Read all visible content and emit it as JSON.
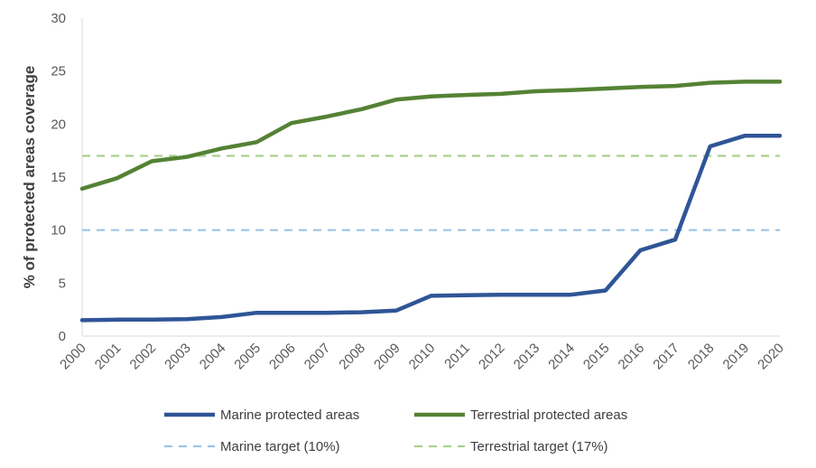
{
  "chart_data": {
    "type": "line",
    "ylabel": "% of protected areas coverage",
    "xlabel": "",
    "ylim": [
      0,
      30
    ],
    "yticks": [
      "0",
      "5",
      "10",
      "15",
      "20",
      "25",
      "30"
    ],
    "x": [
      "2000",
      "2001",
      "2002",
      "2003",
      "2004",
      "2005",
      "2006",
      "2007",
      "2008",
      "2009",
      "2010",
      "2011",
      "2012",
      "2013",
      "2014",
      "2015",
      "2016",
      "2017",
      "2018",
      "2019",
      "2020"
    ],
    "series": [
      {
        "name": "Marine protected areas",
        "color": "#2f5597",
        "style": "solid",
        "values": [
          1.5,
          1.55,
          1.55,
          1.6,
          1.8,
          2.2,
          2.2,
          2.2,
          2.25,
          2.4,
          3.8,
          3.85,
          3.9,
          3.9,
          3.9,
          4.3,
          8.1,
          9.1,
          17.9,
          18.9,
          18.9
        ]
      },
      {
        "name": "Terrestrial protected areas",
        "color": "#548235",
        "style": "solid",
        "values": [
          13.9,
          14.9,
          16.5,
          16.9,
          17.7,
          18.3,
          20.1,
          20.7,
          21.4,
          22.3,
          22.6,
          22.75,
          22.85,
          23.1,
          23.2,
          23.35,
          23.5,
          23.6,
          23.9,
          24.0,
          24.0
        ]
      },
      {
        "name": "Marine target (10%)",
        "color": "#9dc3e6",
        "style": "dashed",
        "values": [
          10,
          10,
          10,
          10,
          10,
          10,
          10,
          10,
          10,
          10,
          10,
          10,
          10,
          10,
          10,
          10,
          10,
          10,
          10,
          10,
          10
        ]
      },
      {
        "name": "Terrestrial target (17%)",
        "color": "#a9d18e",
        "style": "dashed",
        "values": [
          17,
          17,
          17,
          17,
          17,
          17,
          17,
          17,
          17,
          17,
          17,
          17,
          17,
          17,
          17,
          17,
          17,
          17,
          17,
          17,
          17
        ]
      }
    ],
    "grid": false,
    "legend_position": "bottom"
  }
}
